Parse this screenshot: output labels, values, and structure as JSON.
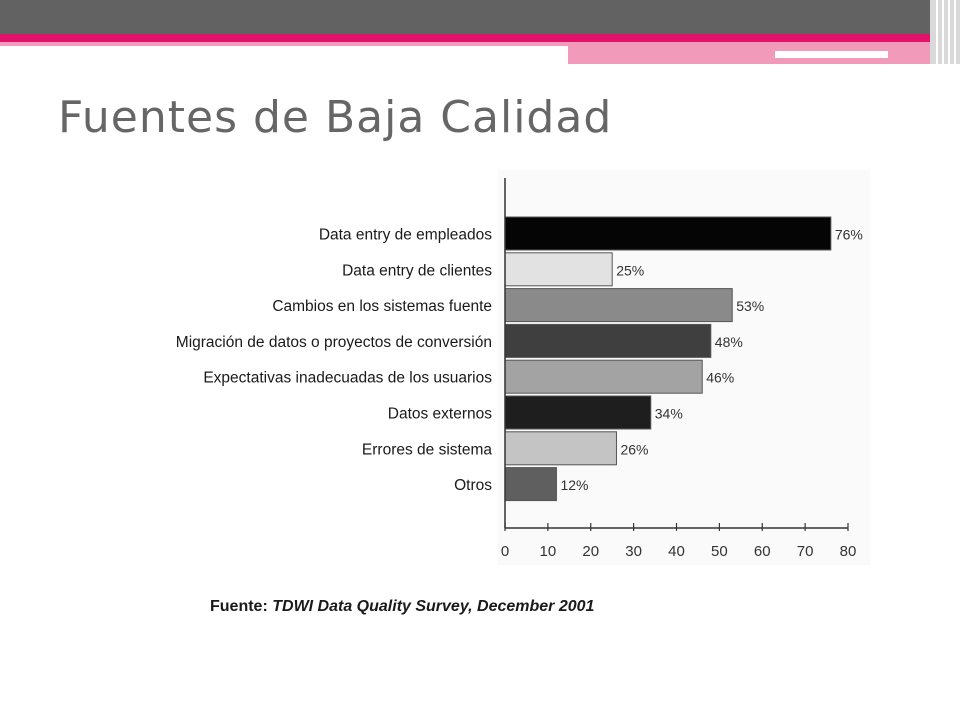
{
  "slide": {
    "title": "Fuentes de Baja Calidad",
    "source_label": "Fuente:",
    "source_text": "TDWI Data Quality Survey, December 2001"
  },
  "theme": {
    "topbar": "#626262",
    "accent": "#e2126a",
    "accent_light": "#f29ab9",
    "title_color": "#666666"
  },
  "chart_data": {
    "type": "bar",
    "orientation": "horizontal",
    "categories": [
      "Data entry de empleados",
      "Data entry de clientes",
      "Cambios en los sistemas fuente",
      "Migración de datos o proyectos de conversión",
      "Expectativas inadecuadas de los usuarios",
      "Datos externos",
      "Errores de sistema",
      "Otros"
    ],
    "values": [
      76,
      25,
      53,
      48,
      46,
      34,
      26,
      12
    ],
    "value_labels": [
      "76%",
      "25%",
      "53%",
      "48%",
      "46%",
      "34%",
      "26%",
      "12%"
    ],
    "bar_colors": [
      "#050505",
      "#e2e2e2",
      "#8a8a8a",
      "#3f3f3f",
      "#a3a3a3",
      "#1e1e1e",
      "#c4c4c4",
      "#5f5f5f"
    ],
    "xlim": [
      0,
      80
    ],
    "xticks": [
      0,
      10,
      20,
      30,
      40,
      50,
      60,
      70,
      80
    ],
    "grid": false,
    "legend": "none"
  }
}
